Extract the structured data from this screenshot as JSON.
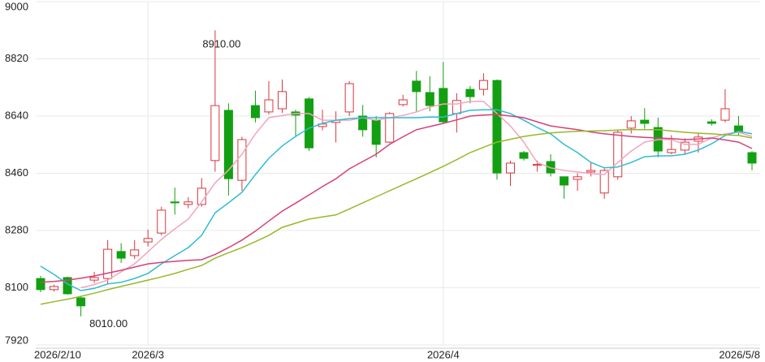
{
  "chart_data": {
    "type": "candlestick",
    "categories": [
      "2026/2/10",
      null,
      null,
      null,
      null,
      null,
      null,
      null,
      "2026/3",
      null,
      null,
      null,
      null,
      null,
      null,
      null,
      null,
      null,
      null,
      null,
      null,
      null,
      null,
      null,
      null,
      null,
      null,
      null,
      null,
      null,
      "2026/4",
      null,
      null,
      null,
      null,
      null,
      null,
      null,
      null,
      null,
      null,
      null,
      null,
      null,
      null,
      null,
      null,
      null,
      null,
      null,
      null,
      null,
      null,
      "2026/5/8"
    ],
    "open": [
      8129,
      8094,
      8132,
      8068,
      8124,
      8129,
      8214,
      8201,
      8244,
      8272,
      8370,
      8362,
      8362,
      8500,
      8658,
      8438,
      8673,
      8653,
      8663,
      8653,
      8694,
      8607,
      8620,
      8653,
      8640,
      8627,
      8558,
      8676,
      8750,
      8714,
      8727,
      8648,
      8724,
      8724,
      8752,
      8461,
      8525,
      8485,
      8497,
      8449,
      8441,
      8464,
      8398,
      8449,
      8602,
      8627,
      8604,
      8525,
      8533,
      8561,
      8622,
      8627,
      8609,
      8525
    ],
    "high": [
      8137,
      8110,
      8135,
      8073,
      8150,
      8250,
      8240,
      8250,
      8283,
      8355,
      8415,
      8385,
      8445,
      8910,
      8680,
      8575,
      8720,
      8750,
      8755,
      8660,
      8700,
      8660,
      8655,
      8750,
      8675,
      8640,
      8652,
      8707,
      8782,
      8765,
      8810,
      8712,
      8735,
      8775,
      8755,
      8500,
      8530,
      8500,
      8520,
      8450,
      8460,
      8495,
      8475,
      8595,
      8640,
      8665,
      8635,
      8580,
      8570,
      8585,
      8630,
      8725,
      8640,
      8530
    ],
    "low": [
      8086,
      8088,
      8078,
      8010,
      8115,
      8112,
      8178,
      8190,
      8230,
      8265,
      8330,
      8350,
      8355,
      8465,
      8390,
      8405,
      8620,
      8645,
      8650,
      8575,
      8530,
      8595,
      8557,
      8640,
      8575,
      8510,
      8555,
      8670,
      8655,
      8655,
      8615,
      8588,
      8680,
      8705,
      8440,
      8420,
      8500,
      8465,
      8450,
      8380,
      8405,
      8450,
      8380,
      8440,
      8585,
      8600,
      8510,
      8520,
      8520,
      8525,
      8610,
      8620,
      8580,
      8470
    ],
    "close": [
      8094,
      8104,
      8081,
      8043,
      8132,
      8221,
      8193,
      8219,
      8255,
      8344,
      8367,
      8370,
      8413,
      8673,
      8443,
      8566,
      8635,
      8691,
      8717,
      8643,
      8540,
      8615,
      8627,
      8742,
      8597,
      8551,
      8648,
      8691,
      8717,
      8673,
      8622,
      8689,
      8701,
      8752,
      8461,
      8492,
      8507,
      8488,
      8461,
      8423,
      8449,
      8469,
      8469,
      8589,
      8625,
      8617,
      8530,
      8535,
      8558,
      8574,
      8617,
      8663,
      8589,
      8492
    ],
    "up_color": "#d9363e",
    "down_color": "#12a012",
    "series": [
      {
        "color": "#f0a6bd",
        "values": [
          null,
          null,
          null,
          8100,
          8110,
          8124,
          8150,
          8175,
          8213,
          8252,
          8285,
          8316,
          8370,
          8430,
          8470,
          8520,
          8584,
          8635,
          8642,
          8648,
          8648,
          8627,
          8627,
          8627,
          8635,
          8627,
          8635,
          8642,
          8653,
          8668,
          8678,
          8678,
          8686,
          8686,
          8648,
          8609,
          8558,
          8494,
          8477,
          8469,
          8464,
          8459,
          8456,
          8494,
          8530,
          8558,
          8566,
          8566,
          8551,
          8551,
          8571,
          8584,
          8589,
          8576
        ]
      },
      {
        "color": "#2fbcd3",
        "values": [
          8168,
          8142,
          8112,
          8091,
          8098,
          8112,
          8117,
          8129,
          8145,
          8175,
          8201,
          8226,
          8265,
          8336,
          8367,
          8400,
          8456,
          8507,
          8546,
          8576,
          8602,
          8617,
          8627,
          8632,
          8635,
          8635,
          8635,
          8635,
          8635,
          8637,
          8637,
          8648,
          8658,
          8660,
          8660,
          8648,
          8627,
          8604,
          8584,
          8551,
          8525,
          8494,
          8477,
          8480,
          8494,
          8512,
          8515,
          8515,
          8520,
          8533,
          8553,
          8579,
          8592,
          8584
        ]
      },
      {
        "color": "#d6407a",
        "values": [
          8117,
          8120,
          8124,
          8130,
          8137,
          8146,
          8155,
          8165,
          8175,
          8180,
          8183,
          8186,
          8188,
          8205,
          8226,
          8250,
          8278,
          8310,
          8341,
          8366,
          8392,
          8418,
          8443,
          8474,
          8497,
          8520,
          8551,
          8575,
          8597,
          8607,
          8617,
          8628,
          8640,
          8643,
          8645,
          8640,
          8635,
          8622,
          8609,
          8603,
          8597,
          8590,
          8584,
          8580,
          8576,
          8573,
          8571,
          8569,
          8566,
          8568,
          8571,
          8565,
          8558,
          8538
        ]
      },
      {
        "color": "#98b82a",
        "values": [
          8048,
          8056,
          8064,
          8073,
          8083,
          8094,
          8104,
          8114,
          8124,
          8134,
          8145,
          8158,
          8170,
          8193,
          8210,
          8226,
          8245,
          8265,
          8290,
          8303,
          8316,
          8323,
          8329,
          8348,
          8367,
          8386,
          8405,
          8424,
          8443,
          8462,
          8482,
          8503,
          8525,
          8542,
          8558,
          8567,
          8576,
          8582,
          8587,
          8590,
          8592,
          8593,
          8594,
          8596,
          8597,
          8597,
          8597,
          8593,
          8589,
          8586,
          8584,
          8581,
          8579,
          8571
        ]
      }
    ],
    "max_label": "8910.00",
    "min_label": "8010.00",
    "ylim": [
      7920,
      9000
    ],
    "yticks": [
      7920,
      8100,
      8280,
      8460,
      8640,
      8820,
      9000
    ],
    "grid": true
  }
}
